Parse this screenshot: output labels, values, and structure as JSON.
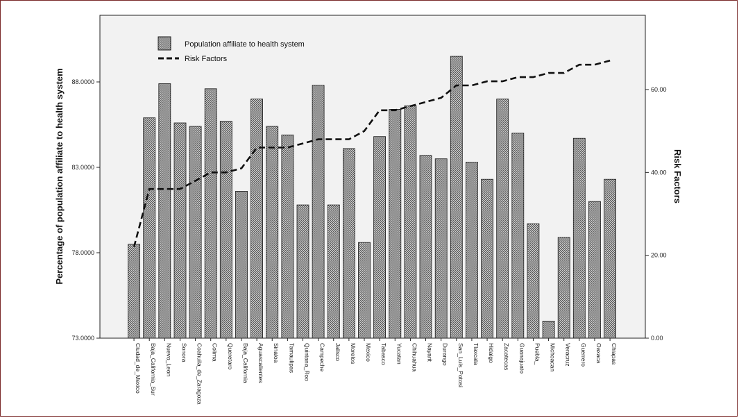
{
  "chart_data": {
    "type": "bar",
    "categories": [
      "Ciudad_de_Mexico",
      "Baja_California_Sur",
      "Nuevo_Leon",
      "Sonora",
      "Coahuila_de_Zaragoza",
      "Colima",
      "Queretaro",
      "Baja_California",
      "Aguascalientes",
      "Sinaloa",
      "Tamaulipas",
      "Quintana_Roo",
      "Campeche",
      "Jalisco",
      "Morelos",
      "Mexico",
      "Tabasco",
      "Yucatan",
      "Chihuahua",
      "Nayarit",
      "Durango",
      "San_Luis_Potosi",
      "Tlaxcala",
      "Hidalgo",
      "Zacatecas",
      "Guanajuato",
      "Puebla_",
      "Michoacan",
      "Veracruz",
      "Guerrero",
      "Oaxaca",
      "Chiapas"
    ],
    "series": [
      {
        "name": "Population affiliate to health system",
        "type": "bar",
        "axis": "left",
        "values": [
          78.5,
          85.9,
          87.9,
          85.6,
          85.4,
          87.6,
          85.7,
          81.6,
          87.0,
          85.4,
          84.9,
          80.8,
          87.8,
          80.8,
          84.1,
          78.6,
          84.8,
          86.4,
          86.6,
          83.7,
          83.5,
          89.5,
          83.3,
          82.3,
          87.0,
          85.0,
          79.7,
          74.0,
          78.9,
          84.7,
          81.0,
          82.3
        ]
      },
      {
        "name": "Risk Factors",
        "type": "line",
        "axis": "right",
        "values": [
          22,
          36,
          36,
          36,
          38,
          40,
          40,
          41,
          46,
          46,
          46,
          47,
          48,
          48,
          48,
          50,
          55,
          55,
          56,
          57,
          58,
          61,
          61,
          62,
          62,
          63,
          63,
          64,
          64,
          66,
          66,
          67
        ]
      }
    ],
    "ylabel": "Percentage of population affiliate to health system",
    "y2label": "Risk Factors",
    "xlabel": "",
    "ylim": [
      73,
      88
    ],
    "yticks": [
      "73.0000",
      "78.0000",
      "83.0000",
      "88.0000"
    ],
    "y2lim": [
      0,
      60
    ],
    "y2ticks": [
      "0.00",
      "20.00",
      "40.00",
      "60.00"
    ],
    "legend_position": "top-left",
    "grid": false
  },
  "colors": {
    "frame": "#7a2a2a",
    "plot_bg": "#f2f2f2",
    "bar_fill": "#a9a9a9",
    "bar_stroke": "#1a1a1a",
    "line": "#111111"
  }
}
